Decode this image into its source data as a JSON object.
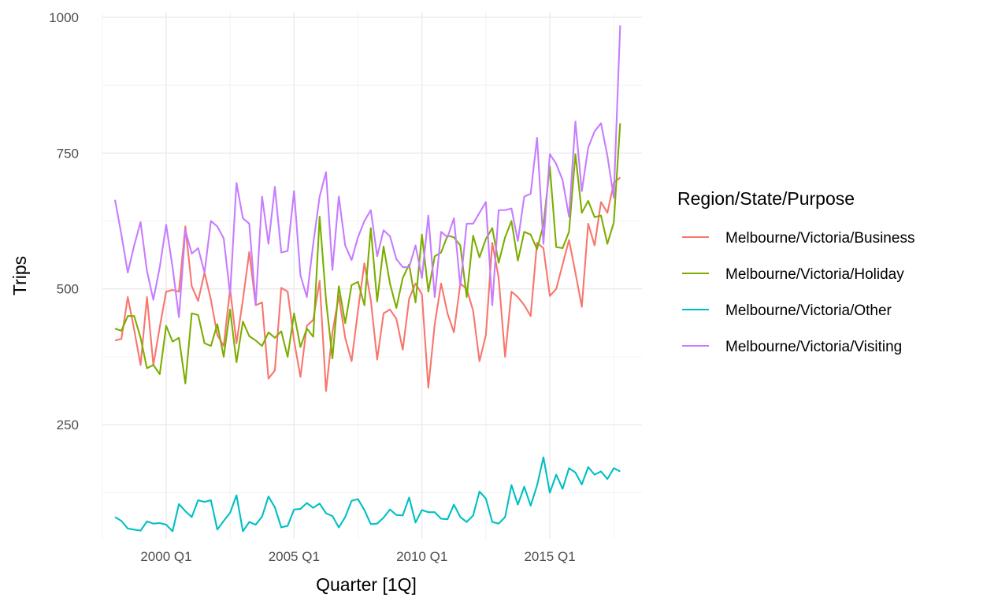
{
  "chart_data": {
    "type": "line",
    "title": "",
    "xlabel": "Quarter [1Q]",
    "ylabel": "Trips",
    "legend_title": "Region/State/Purpose",
    "legend_position": "right",
    "grid": true,
    "x_start": "1998 Q1",
    "x_ticks": [
      "2000 Q1",
      "2005 Q1",
      "2010 Q1",
      "2015 Q1"
    ],
    "y_ticks": [
      250,
      500,
      750,
      1000
    ],
    "ylim": [
      40,
      1010
    ],
    "x": [
      "1998 Q1",
      "1998 Q2",
      "1998 Q3",
      "1998 Q4",
      "1999 Q1",
      "1999 Q2",
      "1999 Q3",
      "1999 Q4",
      "2000 Q1",
      "2000 Q2",
      "2000 Q3",
      "2000 Q4",
      "2001 Q1",
      "2001 Q2",
      "2001 Q3",
      "2001 Q4",
      "2002 Q1",
      "2002 Q2",
      "2002 Q3",
      "2002 Q4",
      "2003 Q1",
      "2003 Q2",
      "2003 Q3",
      "2003 Q4",
      "2004 Q1",
      "2004 Q2",
      "2004 Q3",
      "2004 Q4",
      "2005 Q1",
      "2005 Q2",
      "2005 Q3",
      "2005 Q4",
      "2006 Q1",
      "2006 Q2",
      "2006 Q3",
      "2006 Q4",
      "2007 Q1",
      "2007 Q2",
      "2007 Q3",
      "2007 Q4",
      "2008 Q1",
      "2008 Q2",
      "2008 Q3",
      "2008 Q4",
      "2009 Q1",
      "2009 Q2",
      "2009 Q3",
      "2009 Q4",
      "2010 Q1",
      "2010 Q2",
      "2010 Q3",
      "2010 Q4",
      "2011 Q1",
      "2011 Q2",
      "2011 Q3",
      "2011 Q4",
      "2012 Q1",
      "2012 Q2",
      "2012 Q3",
      "2012 Q4",
      "2013 Q1",
      "2013 Q2",
      "2013 Q3",
      "2013 Q4",
      "2014 Q1",
      "2014 Q2",
      "2014 Q3",
      "2014 Q4",
      "2015 Q1",
      "2015 Q2",
      "2015 Q3",
      "2015 Q4",
      "2016 Q1",
      "2016 Q2",
      "2016 Q3",
      "2016 Q4",
      "2017 Q1",
      "2017 Q2",
      "2017 Q3",
      "2017 Q4"
    ],
    "series": [
      {
        "name": "Melbourne/Victoria/Business",
        "color": "#F8766D",
        "values": [
          405,
          408,
          485,
          425,
          360,
          485,
          360,
          430,
          495,
          498,
          495,
          615,
          505,
          478,
          530,
          480,
          415,
          395,
          500,
          400,
          480,
          568,
          470,
          475,
          335,
          350,
          502,
          495,
          405,
          338,
          432,
          443,
          515,
          312,
          420,
          487,
          410,
          367,
          460,
          547,
          480,
          370,
          455,
          462,
          445,
          388,
          482,
          510,
          490,
          318,
          435,
          510,
          455,
          420,
          510,
          500,
          460,
          367,
          415,
          585,
          520,
          375,
          495,
          485,
          470,
          450,
          585,
          575,
          487,
          500,
          545,
          590,
          530,
          467,
          620,
          580,
          660,
          640,
          695,
          705
        ]
      },
      {
        "name": "Melbourne/Victoria/Holiday",
        "color": "#7CAE00",
        "values": [
          427,
          423,
          450,
          450,
          410,
          354,
          360,
          343,
          432,
          403,
          410,
          326,
          455,
          452,
          400,
          395,
          435,
          375,
          462,
          365,
          440,
          413,
          405,
          395,
          420,
          410,
          422,
          375,
          455,
          393,
          427,
          412,
          633,
          480,
          372,
          505,
          437,
          507,
          513,
          470,
          612,
          477,
          578,
          510,
          465,
          520,
          545,
          475,
          600,
          495,
          560,
          567,
          598,
          595,
          580,
          485,
          598,
          558,
          592,
          612,
          548,
          595,
          625,
          552,
          605,
          600,
          573,
          618,
          725,
          577,
          575,
          605,
          748,
          640,
          662,
          632,
          635,
          583,
          622,
          805
        ]
      },
      {
        "name": "Melbourne/Victoria/Other",
        "color": "#00BFC4",
        "values": [
          80,
          73,
          59,
          57,
          55,
          72,
          68,
          69,
          66,
          54,
          104,
          91,
          80,
          111,
          108,
          111,
          57,
          73,
          88,
          120,
          54,
          71,
          66,
          81,
          118,
          98,
          61,
          64,
          94,
          95,
          106,
          97,
          105,
          87,
          82,
          61,
          80,
          110,
          113,
          93,
          67,
          68,
          79,
          94,
          84,
          83,
          116,
          70,
          93,
          89,
          89,
          77,
          76,
          103,
          80,
          71,
          83,
          127,
          114,
          71,
          68,
          80,
          139,
          103,
          136,
          101,
          138,
          190,
          125,
          158,
          132,
          170,
          162,
          140,
          172,
          158,
          164,
          150,
          170,
          164
        ]
      },
      {
        "name": "Melbourne/Victoria/Visiting",
        "color": "#C77CFF",
        "values": [
          664,
          600,
          530,
          580,
          623,
          533,
          480,
          540,
          618,
          540,
          448,
          608,
          565,
          575,
          530,
          625,
          615,
          593,
          490,
          695,
          630,
          620,
          470,
          670,
          583,
          688,
          567,
          570,
          680,
          525,
          485,
          583,
          670,
          715,
          535,
          670,
          580,
          553,
          595,
          625,
          645,
          560,
          608,
          597,
          555,
          540,
          540,
          580,
          520,
          635,
          485,
          605,
          595,
          630,
          505,
          620,
          620,
          640,
          660,
          470,
          645,
          645,
          648,
          588,
          670,
          675,
          778,
          583,
          748,
          730,
          700,
          633,
          808,
          680,
          760,
          790,
          805,
          745,
          668,
          985
        ]
      }
    ]
  }
}
